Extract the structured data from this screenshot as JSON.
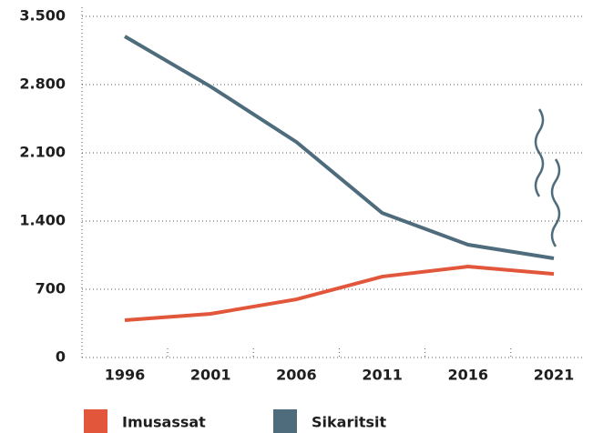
{
  "chart_data": {
    "type": "line",
    "categories": [
      "1996",
      "2001",
      "2006",
      "2011",
      "2016",
      "2021"
    ],
    "series": [
      {
        "name": "Imusassat",
        "color": "#e2573b",
        "values": [
          383,
          448,
          597,
          830,
          933,
          858
        ]
      },
      {
        "name": "Sikaritsit",
        "color": "#4e6c7c",
        "values": [
          3295,
          2780,
          2211,
          1483,
          1157,
          1017
        ]
      }
    ],
    "ylim": [
      0,
      3500
    ],
    "yticks": [
      0,
      700,
      {
        "value": 1400,
        "label": "1.400"
      },
      {
        "value": 2100,
        "label": "2.100"
      },
      {
        "value": 2800,
        "label": "2.800"
      },
      {
        "value": 3500,
        "label": "3.500"
      }
    ],
    "grid": true,
    "legend": "bottom"
  }
}
